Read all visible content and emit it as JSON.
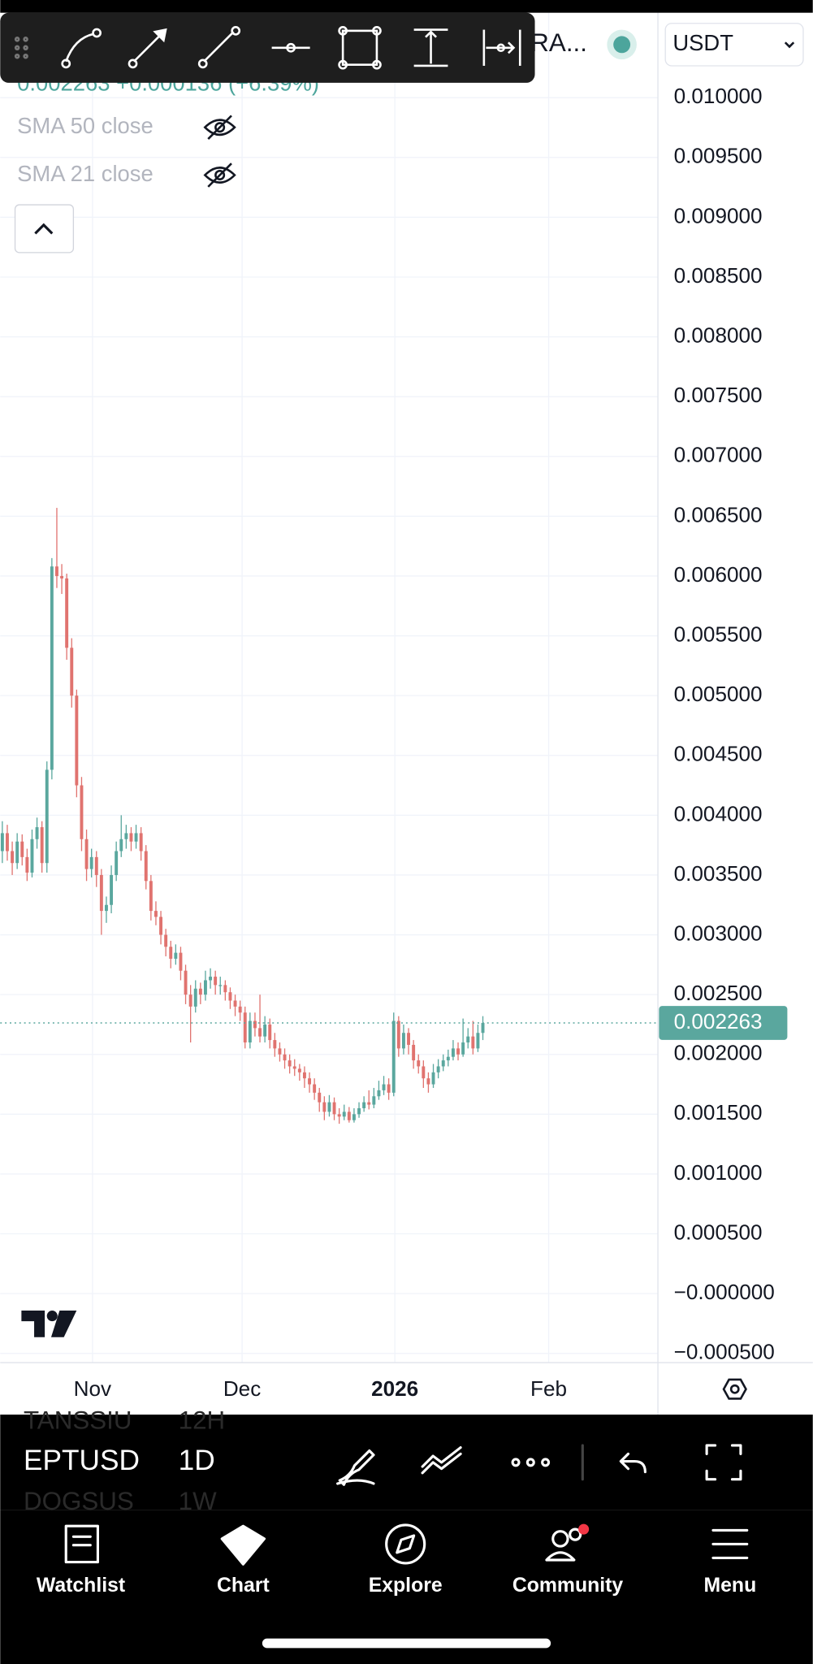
{
  "header": {
    "symbol_partial": "RA...",
    "currency": "USDT",
    "quote": "0.002263 +0.000136 (+6.39%)"
  },
  "indicators": [
    "SMA 50 close",
    "SMA 21 close"
  ],
  "chart": {
    "type": "candlestick",
    "up_color": "#5aa79e",
    "down_color": "#e0736f",
    "grid": true,
    "ylim": [
      -0.000577,
      0.01071
    ],
    "yticks": [
      {
        "value": 0.01,
        "label": "0.010000"
      },
      {
        "value": 0.0095,
        "label": "0.009500"
      },
      {
        "value": 0.009,
        "label": "0.009000"
      },
      {
        "value": 0.0085,
        "label": "0.008500"
      },
      {
        "value": 0.008,
        "label": "0.008000"
      },
      {
        "value": 0.0075,
        "label": "0.007500"
      },
      {
        "value": 0.007,
        "label": "0.007000"
      },
      {
        "value": 0.0065,
        "label": "0.006500"
      },
      {
        "value": 0.006,
        "label": "0.006000"
      },
      {
        "value": 0.0055,
        "label": "0.005500"
      },
      {
        "value": 0.005,
        "label": "0.005000"
      },
      {
        "value": 0.0045,
        "label": "0.004500"
      },
      {
        "value": 0.004,
        "label": "0.004000"
      },
      {
        "value": 0.0035,
        "label": "0.003500"
      },
      {
        "value": 0.003,
        "label": "0.003000"
      },
      {
        "value": 0.0025,
        "label": "0.002500"
      },
      {
        "value": 0.002,
        "label": "0.002000"
      },
      {
        "value": 0.0015,
        "label": "0.001500"
      },
      {
        "value": 0.001,
        "label": "0.001000"
      },
      {
        "value": 0.0005,
        "label": "0.000500"
      },
      {
        "value": 0,
        "label": "−0.000000"
      },
      {
        "value": -0.0005,
        "label": "−0.000500"
      }
    ],
    "xlabels": [
      "Nov",
      "Dec",
      "2026",
      "Feb"
    ],
    "last_price": {
      "value": 0.002263,
      "label": "0.002263"
    },
    "candles": [
      [
        0.0037,
        0.00395,
        0.0036,
        0.00385
      ],
      [
        0.00385,
        0.00392,
        0.00362,
        0.0037
      ],
      [
        0.0037,
        0.00378,
        0.0035,
        0.0036
      ],
      [
        0.0036,
        0.00385,
        0.00355,
        0.00378
      ],
      [
        0.00378,
        0.00384,
        0.00358,
        0.00365
      ],
      [
        0.00365,
        0.00372,
        0.00345,
        0.00352
      ],
      [
        0.00352,
        0.00388,
        0.00348,
        0.0038
      ],
      [
        0.0038,
        0.00398,
        0.00372,
        0.0039
      ],
      [
        0.0039,
        0.00395,
        0.00352,
        0.0036
      ],
      [
        0.0036,
        0.00445,
        0.00352,
        0.00438
      ],
      [
        0.00438,
        0.00615,
        0.0043,
        0.00608
      ],
      [
        0.00608,
        0.00657,
        0.0059,
        0.006
      ],
      [
        0.006,
        0.0061,
        0.00585,
        0.00598
      ],
      [
        0.00598,
        0.00602,
        0.0053,
        0.0054
      ],
      [
        0.0054,
        0.00548,
        0.0049,
        0.005
      ],
      [
        0.005,
        0.00505,
        0.00415,
        0.00425
      ],
      [
        0.00425,
        0.00432,
        0.0037,
        0.0038
      ],
      [
        0.0038,
        0.00388,
        0.00345,
        0.00355
      ],
      [
        0.00355,
        0.00372,
        0.00348,
        0.00365
      ],
      [
        0.00365,
        0.0037,
        0.0034,
        0.0035
      ],
      [
        0.0035,
        0.00355,
        0.003,
        0.0032
      ],
      [
        0.0032,
        0.00332,
        0.0031,
        0.00325
      ],
      [
        0.00325,
        0.00358,
        0.00318,
        0.0035
      ],
      [
        0.0035,
        0.00378,
        0.00345,
        0.0037
      ],
      [
        0.0037,
        0.004,
        0.00365,
        0.0038
      ],
      [
        0.0038,
        0.00392,
        0.00372,
        0.00385
      ],
      [
        0.00385,
        0.0039,
        0.0037,
        0.00378
      ],
      [
        0.00378,
        0.00392,
        0.00372,
        0.00385
      ],
      [
        0.00385,
        0.0039,
        0.00362,
        0.0037
      ],
      [
        0.0037,
        0.00375,
        0.00338,
        0.00345
      ],
      [
        0.00345,
        0.0035,
        0.00312,
        0.0032
      ],
      [
        0.0032,
        0.00328,
        0.00308,
        0.00315
      ],
      [
        0.00315,
        0.0032,
        0.00292,
        0.003
      ],
      [
        0.003,
        0.00305,
        0.00282,
        0.0029
      ],
      [
        0.0029,
        0.00295,
        0.00272,
        0.0028
      ],
      [
        0.0028,
        0.00292,
        0.00275,
        0.00285
      ],
      [
        0.00285,
        0.0029,
        0.00262,
        0.0027
      ],
      [
        0.0027,
        0.00275,
        0.00242,
        0.0025
      ],
      [
        0.0025,
        0.00258,
        0.0021,
        0.0024
      ],
      [
        0.0024,
        0.00262,
        0.00235,
        0.00255
      ],
      [
        0.00255,
        0.0026,
        0.00242,
        0.0025
      ],
      [
        0.0025,
        0.0027,
        0.00245,
        0.00262
      ],
      [
        0.00262,
        0.00272,
        0.00255,
        0.00265
      ],
      [
        0.00265,
        0.0027,
        0.0025,
        0.00258
      ],
      [
        0.00258,
        0.00265,
        0.0025,
        0.00258
      ],
      [
        0.00258,
        0.00262,
        0.00245,
        0.00252
      ],
      [
        0.00252,
        0.00256,
        0.00238,
        0.00245
      ],
      [
        0.00245,
        0.0025,
        0.00232,
        0.0024
      ],
      [
        0.0024,
        0.00245,
        0.00228,
        0.00235
      ],
      [
        0.00235,
        0.0024,
        0.00205,
        0.0021
      ],
      [
        0.0021,
        0.00235,
        0.00205,
        0.00228
      ],
      [
        0.00228,
        0.00235,
        0.00215,
        0.00222
      ],
      [
        0.00222,
        0.0025,
        0.0021,
        0.00215
      ],
      [
        0.00215,
        0.00232,
        0.0021,
        0.00225
      ],
      [
        0.00225,
        0.0023,
        0.00205,
        0.00212
      ],
      [
        0.00212,
        0.00218,
        0.00198,
        0.00205
      ],
      [
        0.00205,
        0.0021,
        0.00194,
        0.002
      ],
      [
        0.002,
        0.00205,
        0.00188,
        0.00195
      ],
      [
        0.00195,
        0.002,
        0.00184,
        0.0019
      ],
      [
        0.0019,
        0.00196,
        0.00182,
        0.00188
      ],
      [
        0.00188,
        0.00192,
        0.00178,
        0.00185
      ],
      [
        0.00185,
        0.0019,
        0.00172,
        0.0018
      ],
      [
        0.0018,
        0.00185,
        0.00168,
        0.00175
      ],
      [
        0.00175,
        0.0018,
        0.00162,
        0.00168
      ],
      [
        0.00168,
        0.00172,
        0.00152,
        0.0016
      ],
      [
        0.0016,
        0.00165,
        0.00145,
        0.00152
      ],
      [
        0.00152,
        0.00166,
        0.00148,
        0.0016
      ],
      [
        0.0016,
        0.00164,
        0.00145,
        0.0015
      ],
      [
        0.0015,
        0.00155,
        0.00142,
        0.00148
      ],
      [
        0.00148,
        0.00158,
        0.00145,
        0.00152
      ],
      [
        0.00152,
        0.00156,
        0.00143,
        0.00145
      ],
      [
        0.00145,
        0.00155,
        0.00143,
        0.0015
      ],
      [
        0.0015,
        0.0016,
        0.00147,
        0.00155
      ],
      [
        0.00155,
        0.00165,
        0.00152,
        0.0016
      ],
      [
        0.0016,
        0.0017,
        0.00154,
        0.00158
      ],
      [
        0.00158,
        0.00172,
        0.00155,
        0.00165
      ],
      [
        0.00165,
        0.00178,
        0.00162,
        0.0017
      ],
      [
        0.0017,
        0.00182,
        0.00166,
        0.00175
      ],
      [
        0.00175,
        0.0018,
        0.00162,
        0.00168
      ],
      [
        0.00168,
        0.00235,
        0.00165,
        0.00228
      ],
      [
        0.00228,
        0.00232,
        0.00198,
        0.00205
      ],
      [
        0.00205,
        0.00225,
        0.002,
        0.00218
      ],
      [
        0.00218,
        0.00222,
        0.002,
        0.00208
      ],
      [
        0.00208,
        0.00212,
        0.00188,
        0.00195
      ],
      [
        0.00195,
        0.002,
        0.00184,
        0.0019
      ],
      [
        0.0019,
        0.00195,
        0.00172,
        0.0018
      ],
      [
        0.0018,
        0.00185,
        0.00168,
        0.00175
      ],
      [
        0.00175,
        0.00192,
        0.00172,
        0.00185
      ],
      [
        0.00185,
        0.00196,
        0.0018,
        0.0019
      ],
      [
        0.0019,
        0.002,
        0.00186,
        0.00195
      ],
      [
        0.00195,
        0.00204,
        0.0019,
        0.00198
      ],
      [
        0.00198,
        0.00212,
        0.00195,
        0.00205
      ],
      [
        0.00205,
        0.0021,
        0.00195,
        0.002
      ],
      [
        0.002,
        0.0023,
        0.00198,
        0.0021
      ],
      [
        0.0021,
        0.00222,
        0.00205,
        0.00215
      ],
      [
        0.00215,
        0.00228,
        0.002,
        0.00205
      ],
      [
        0.00205,
        0.00225,
        0.00202,
        0.00218
      ],
      [
        0.00218,
        0.00232,
        0.00212,
        0.002263
      ]
    ]
  },
  "picker": {
    "above": [
      "TANSSIU",
      "12H"
    ],
    "current": [
      "EPTUSD",
      "1D"
    ],
    "below": [
      "DOGSUS",
      "1W"
    ]
  },
  "nav": [
    "Watchlist",
    "Chart",
    "Explore",
    "Community",
    "Menu"
  ]
}
